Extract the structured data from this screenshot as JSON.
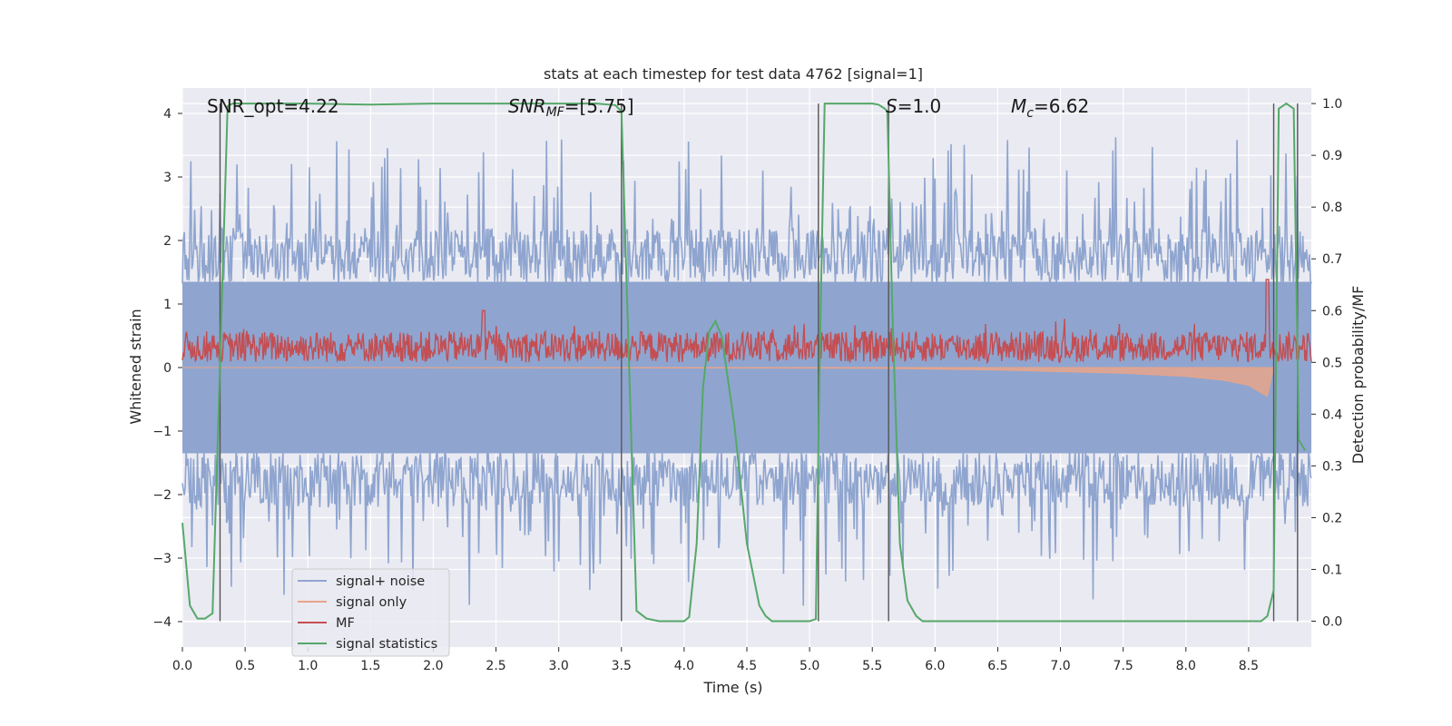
{
  "chart_data": {
    "type": "line",
    "title": "stats at each timestep for test data 4762 [signal=1]",
    "xlabel": "Time (s)",
    "ylabel": "Whitened strain",
    "ylabel_right": "Detection probability/MF",
    "xlim": [
      0,
      9
    ],
    "ylim": [
      -4.4,
      4.4
    ],
    "ylim_right": [
      -0.05,
      1.03
    ],
    "x_ticks": [
      0.0,
      0.5,
      1.0,
      1.5,
      2.0,
      2.5,
      3.0,
      3.5,
      4.0,
      4.5,
      5.0,
      5.5,
      6.0,
      6.5,
      7.0,
      7.5,
      8.0,
      8.5
    ],
    "x_tick_labels": [
      "0.0",
      "0.5",
      "1.0",
      "1.5",
      "2.0",
      "2.5",
      "3.0",
      "3.5",
      "4.0",
      "4.5",
      "5.0",
      "5.5",
      "6.0",
      "6.5",
      "7.0",
      "7.5",
      "8.0",
      "8.5"
    ],
    "y_ticks": [
      -4,
      -3,
      -2,
      -1,
      0,
      1,
      2,
      3,
      4
    ],
    "y_tick_labels": [
      "−4",
      "−3",
      "−2",
      "−1",
      "0",
      "1",
      "2",
      "3",
      "4"
    ],
    "y_right_ticks": [
      0.0,
      0.1,
      0.2,
      0.3,
      0.4,
      0.5,
      0.6,
      0.7,
      0.8,
      0.9,
      1.0
    ],
    "y_right_tick_labels": [
      "0.0",
      "0.1",
      "0.2",
      "0.3",
      "0.4",
      "0.5",
      "0.6",
      "0.7",
      "0.8",
      "0.9",
      "1.0"
    ],
    "grid": true,
    "legend_position": "lower-left",
    "annotations": {
      "snr_opt": "SNR_opt=4.22",
      "snr_mf_main": "SNR",
      "snr_mf_sub": "MF",
      "snr_mf_value": "=[5.75]",
      "s_symbol": "S",
      "s_value": "=1.0",
      "mc_symbol": "M",
      "mc_sub": "c",
      "mc_value": "=6.62"
    },
    "series": [
      {
        "name": "signal+ noise",
        "color": "#8fa5cf",
        "axis": "left",
        "description_stat": {
          "typical_upper_envelope": 1.6,
          "peak_max": 3.9,
          "peak_min": -3.9
        }
      },
      {
        "name": "signal only",
        "color": "#e8a48a",
        "axis": "left",
        "x": [
          0.0,
          5.5,
          6.5,
          7.5,
          8.0,
          8.3,
          8.5,
          8.6,
          8.65,
          8.7
        ],
        "y": [
          0.0,
          -0.01,
          -0.04,
          -0.09,
          -0.14,
          -0.2,
          -0.28,
          -0.4,
          -0.45,
          0.0
        ]
      },
      {
        "name": "MF",
        "color": "#c44e52",
        "axis": "right",
        "typical_range": [
          0.5,
          0.56
        ],
        "peaks": [
          {
            "x": 2.4,
            "y": 0.6
          },
          {
            "x": 8.65,
            "y": 0.66
          }
        ]
      },
      {
        "name": "signal statistics",
        "color": "#55a868",
        "axis": "right",
        "x": [
          0.0,
          0.06,
          0.12,
          0.18,
          0.24,
          0.3,
          0.36,
          0.4,
          0.6,
          1.0,
          1.5,
          2.0,
          2.5,
          3.0,
          3.3,
          3.45,
          3.5,
          3.56,
          3.62,
          3.7,
          3.8,
          3.9,
          4.0,
          4.04,
          4.1,
          4.15,
          4.2,
          4.25,
          4.3,
          4.4,
          4.5,
          4.6,
          4.65,
          4.7,
          4.8,
          4.9,
          5.0,
          5.05,
          5.08,
          5.12,
          5.2,
          5.3,
          5.4,
          5.5,
          5.55,
          5.6,
          5.62,
          5.66,
          5.72,
          5.78,
          5.85,
          5.9,
          6.0,
          6.5,
          7.0,
          7.5,
          8.0,
          8.5,
          8.6,
          8.65,
          8.7,
          8.74,
          8.8,
          8.86,
          8.9,
          8.95
        ],
        "y": [
          0.19,
          0.03,
          0.005,
          0.005,
          0.015,
          0.5,
          0.995,
          1.0,
          1.0,
          1.0,
          0.998,
          1.0,
          1.0,
          1.0,
          1.0,
          0.997,
          0.985,
          0.5,
          0.02,
          0.005,
          0.0,
          0.0,
          0.0,
          0.008,
          0.15,
          0.45,
          0.56,
          0.58,
          0.55,
          0.38,
          0.15,
          0.03,
          0.01,
          0.0,
          0.0,
          0.0,
          0.0,
          0.004,
          0.5,
          1.0,
          1.0,
          1.0,
          1.0,
          1.0,
          0.998,
          0.99,
          0.985,
          0.6,
          0.15,
          0.04,
          0.01,
          0.0,
          0.0,
          0.0,
          0.0,
          0.0,
          0.0,
          0.0,
          0.0,
          0.01,
          0.06,
          0.99,
          1.0,
          0.99,
          0.35,
          0.33
        ]
      }
    ],
    "vertical_markers_x": [
      0.3,
      3.5,
      5.07,
      5.63,
      8.7,
      8.89
    ]
  }
}
